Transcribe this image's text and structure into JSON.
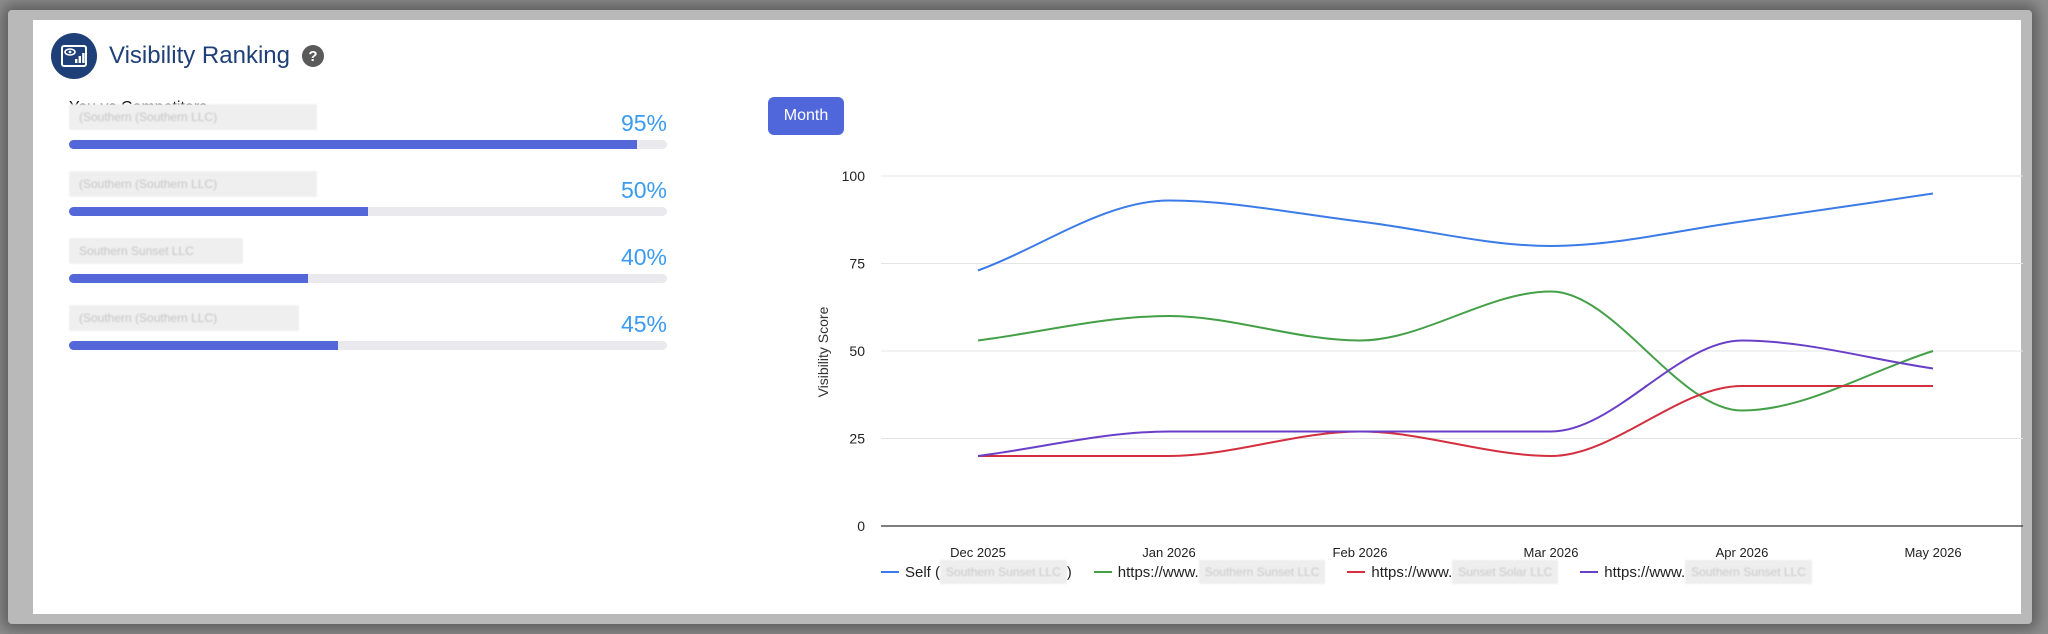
{
  "header": {
    "title": "Visibility Ranking",
    "help_icon": "?"
  },
  "comparison": {
    "subtitle": "You vs Competitors",
    "rows": [
      {
        "label": "(Southern (Southern LLC)",
        "percent_label": "95%",
        "value": 0.95
      },
      {
        "label": "(Southern (Southern LLC)",
        "percent_label": "50%",
        "value": 0.5
      },
      {
        "label": "Southern Sunset LLC",
        "percent_label": "40%",
        "value": 0.4
      },
      {
        "label": "(Southern (Southern LLC)",
        "percent_label": "45%",
        "value": 0.45
      }
    ]
  },
  "period_button": {
    "label": "Month"
  },
  "chart_data": {
    "type": "line",
    "ylabel": "Visibility Score",
    "ylim": [
      0,
      100
    ],
    "yticks": [
      0,
      25,
      50,
      75,
      100
    ],
    "grid": true,
    "legend_placement": "bottom",
    "categories": [
      "Dec 2025",
      "Jan 2026",
      "Feb 2026",
      "Mar 2026",
      "Apr 2026",
      "May 2026"
    ],
    "series": [
      {
        "name": "Self (Southern Sunset LLC)",
        "name_prefix": "Self (",
        "name_blur": "Southern Sunset LLC",
        "name_suffix": ")",
        "color": "#3b7be8",
        "values": [
          73,
          93,
          87,
          80,
          87,
          95
        ]
      },
      {
        "name": "https://www.southernsunset.com",
        "name_prefix": "https://www.",
        "name_blur": "Southern Sunset LLC",
        "name_suffix": "",
        "color": "#43a047",
        "values": [
          53,
          60,
          53,
          67,
          33,
          50
        ]
      },
      {
        "name": "https://www.sunsetsolar.com",
        "name_prefix": "https://www.",
        "name_blur": "Sunset Solar LLC",
        "name_suffix": "",
        "color": "#d32f3f",
        "values": [
          20,
          20,
          27,
          20,
          40,
          40
        ]
      },
      {
        "name": "https://www.southernsunset.net",
        "name_prefix": "https://www.",
        "name_blur": "Southern Sunset LLC",
        "name_suffix": "",
        "color": "#6a3fc8",
        "values": [
          20,
          27,
          27,
          27,
          53,
          45
        ]
      }
    ]
  },
  "icons": {
    "header": "visibility-dashboard-icon",
    "help": "help-icon"
  }
}
